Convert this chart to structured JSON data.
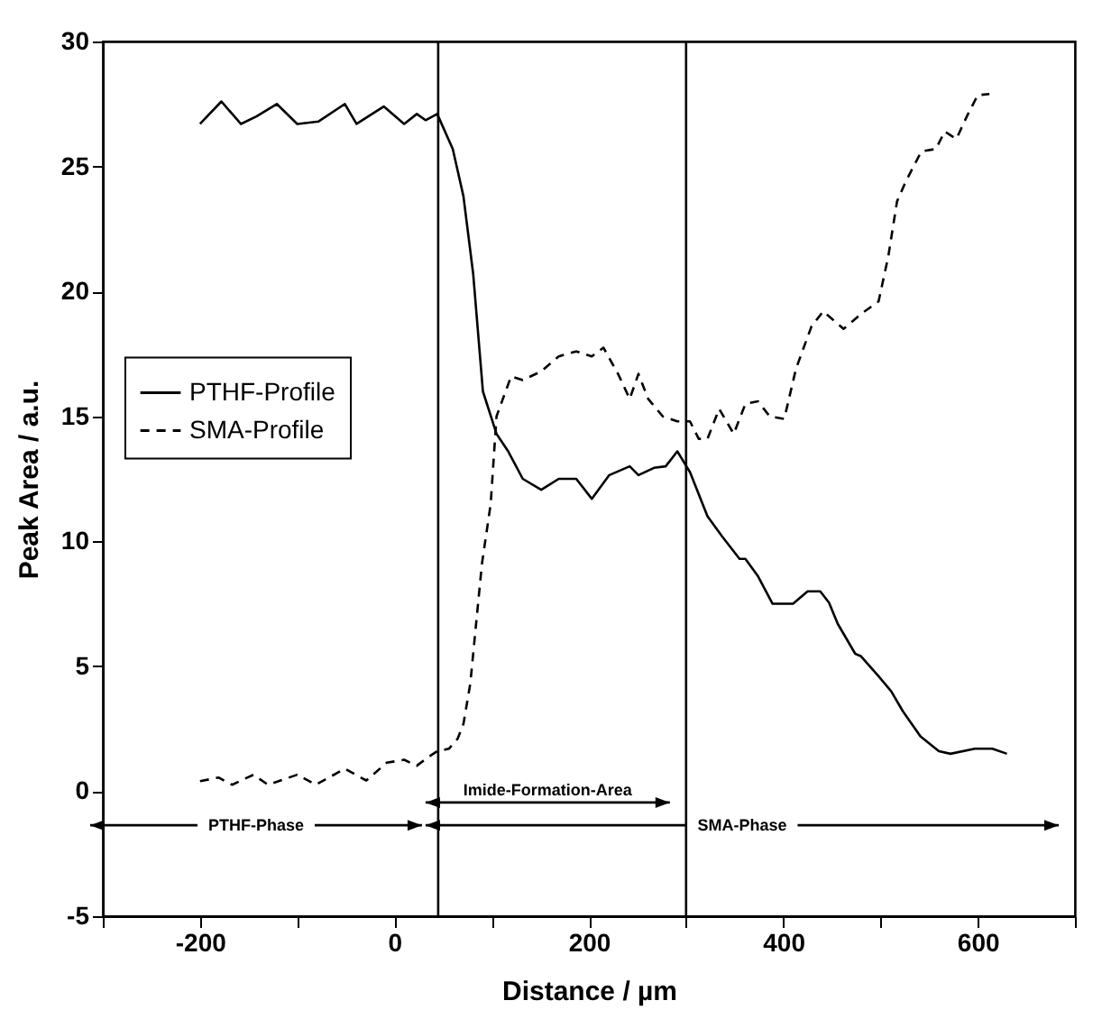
{
  "chart_data": {
    "type": "line",
    "xlabel": "Distance / µm",
    "ylabel": "Peak Area / a.u.",
    "xlim": [
      -300,
      700
    ],
    "ylim": [
      -5,
      30
    ],
    "xticks": [
      {
        "value": -300,
        "label": null
      },
      -200,
      {
        "value": -100,
        "label": null
      },
      0,
      {
        "value": 100,
        "label": null
      },
      200,
      {
        "value": 300,
        "label": null
      },
      400,
      {
        "value": 500,
        "label": null
      },
      600,
      {
        "value": 700,
        "label": null
      }
    ],
    "yticks": [
      -5,
      0,
      5,
      10,
      15,
      20,
      25,
      30
    ],
    "legend": "left",
    "series": [
      {
        "name": "PTHF-Profile",
        "color": "#000000",
        "line_style": "solid",
        "x": [
          -200,
          -178,
          -158,
          -142,
          -121,
          -100,
          -78,
          -51,
          -39,
          -11,
          10,
          23,
          32,
          44,
          60,
          71,
          81,
          91,
          105,
          117,
          132,
          151,
          169,
          187,
          203,
          221,
          242,
          251,
          267,
          279,
          291,
          304,
          322,
          337,
          355,
          361,
          374,
          389,
          410,
          425,
          438,
          447,
          456,
          474,
          480,
          498,
          511,
          523,
          541,
          560,
          572,
          597,
          615,
          630
        ],
        "values": [
          26.7,
          27.6,
          26.7,
          27.0,
          27.5,
          26.7,
          26.8,
          27.5,
          26.7,
          27.4,
          26.7,
          27.1,
          26.85,
          27.1,
          25.7,
          23.8,
          20.7,
          16.0,
          14.3,
          13.6,
          12.5,
          12.06,
          12.5,
          12.5,
          11.7,
          12.65,
          13.0,
          12.65,
          12.94,
          13.0,
          13.6,
          12.77,
          11.0,
          10.2,
          9.3,
          9.3,
          8.6,
          7.5,
          7.5,
          8.0,
          8.0,
          7.55,
          6.7,
          5.5,
          5.4,
          4.6,
          4.0,
          3.2,
          2.2,
          1.6,
          1.5,
          1.7,
          1.7,
          1.5
        ]
      },
      {
        "name": "SMA-Profile",
        "color": "#000000",
        "line_style": "dashed",
        "x": [
          -200,
          -181,
          -167,
          -145,
          -130,
          -100,
          -81,
          -51,
          -29,
          -8,
          10,
          23,
          35,
          44,
          56,
          65,
          71,
          78,
          84,
          90,
          99,
          105,
          120,
          132,
          151,
          169,
          187,
          203,
          215,
          230,
          242,
          251,
          261,
          276,
          291,
          304,
          313,
          322,
          334,
          349,
          361,
          374,
          386,
          401,
          413,
          429,
          441,
          462,
          480,
          498,
          508,
          517,
          526,
          542,
          557,
          566,
          578,
          590,
          600,
          612
        ],
        "values": [
          0.4,
          0.55,
          0.26,
          0.66,
          0.26,
          0.66,
          0.26,
          0.9,
          0.43,
          1.14,
          1.26,
          1.02,
          1.37,
          1.6,
          1.7,
          2.1,
          2.7,
          4.3,
          6.7,
          9.1,
          11.5,
          15.0,
          16.6,
          16.45,
          16.8,
          17.4,
          17.6,
          17.4,
          17.75,
          16.7,
          15.7,
          16.7,
          15.7,
          15.0,
          14.8,
          14.8,
          14.1,
          14.1,
          15.3,
          14.3,
          15.5,
          15.6,
          15.0,
          14.9,
          16.9,
          18.6,
          19.2,
          18.5,
          19.1,
          19.6,
          21.4,
          23.6,
          24.4,
          25.6,
          25.7,
          26.4,
          26.1,
          27.1,
          27.85,
          27.9
        ]
      }
    ],
    "ref_lines": [
      {
        "axis": "x",
        "value": 45,
        "color": "#000000"
      },
      {
        "axis": "x",
        "value": 300,
        "color": "#000000"
      }
    ],
    "annotations": [
      "PTHF-Phase",
      "Imide-Formation-Area",
      "SMA-Phase"
    ]
  }
}
